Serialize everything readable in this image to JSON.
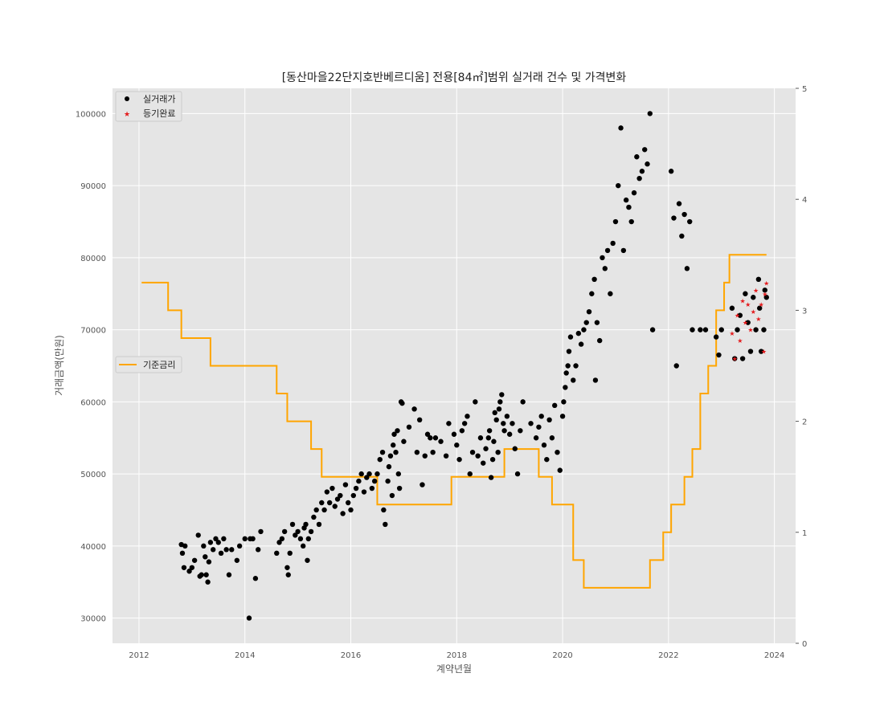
{
  "chart_data": {
    "type": "scatter",
    "title": "[동산마을22단지호반베르디움] 전용[84㎡]범위 실거래 건수 및 가격변화",
    "xlabel": "계약년월",
    "ylabel": "거래금액(만원)",
    "xlim": [
      2011.5,
      2024.4
    ],
    "ylim": [
      26500,
      103500
    ],
    "y2lim": [
      0,
      5
    ],
    "x_ticks": [
      2012,
      2014,
      2016,
      2018,
      2020,
      2022,
      2024
    ],
    "y_ticks": [
      30000,
      40000,
      50000,
      60000,
      70000,
      80000,
      90000,
      100000
    ],
    "y2_ticks": [
      0,
      1,
      2,
      3,
      4,
      5
    ],
    "grid": true,
    "legend_top": {
      "position": "top-left",
      "entries": [
        "실거래가",
        "등기완료"
      ]
    },
    "legend_rate": {
      "position": "center-left",
      "entries": [
        "기준금리"
      ]
    },
    "colors": {
      "trades": "#000000",
      "registered": "#e41a1c",
      "rate": "#ffa500",
      "plot_bg": "#e5e5e5",
      "grid": "#ffffff"
    },
    "series": [
      {
        "name": "실거래가",
        "marker": "dot",
        "points": [
          [
            2012.8,
            40200
          ],
          [
            2012.82,
            39000
          ],
          [
            2012.85,
            37000
          ],
          [
            2012.87,
            40000
          ],
          [
            2012.95,
            36500
          ],
          [
            2013.0,
            37000
          ],
          [
            2013.05,
            38000
          ],
          [
            2013.12,
            41500
          ],
          [
            2013.15,
            35800
          ],
          [
            2013.18,
            36000
          ],
          [
            2013.22,
            40000
          ],
          [
            2013.25,
            38500
          ],
          [
            2013.27,
            36000
          ],
          [
            2013.3,
            35000
          ],
          [
            2013.32,
            37800
          ],
          [
            2013.35,
            40500
          ],
          [
            2013.4,
            39500
          ],
          [
            2013.45,
            41000
          ],
          [
            2013.5,
            40500
          ],
          [
            2013.55,
            39000
          ],
          [
            2013.6,
            41000
          ],
          [
            2013.65,
            39500
          ],
          [
            2013.7,
            36000
          ],
          [
            2013.75,
            39500
          ],
          [
            2013.85,
            38000
          ],
          [
            2013.9,
            40000
          ],
          [
            2014.0,
            41000
          ],
          [
            2014.08,
            30000
          ],
          [
            2014.1,
            41000
          ],
          [
            2014.15,
            41000
          ],
          [
            2014.2,
            35500
          ],
          [
            2014.25,
            39500
          ],
          [
            2014.3,
            42000
          ],
          [
            2014.6,
            39000
          ],
          [
            2014.65,
            40500
          ],
          [
            2014.7,
            41000
          ],
          [
            2014.75,
            42000
          ],
          [
            2014.8,
            37000
          ],
          [
            2014.82,
            36000
          ],
          [
            2014.85,
            39000
          ],
          [
            2014.9,
            43000
          ],
          [
            2014.95,
            41500
          ],
          [
            2015.0,
            42000
          ],
          [
            2015.05,
            41000
          ],
          [
            2015.1,
            40000
          ],
          [
            2015.12,
            42500
          ],
          [
            2015.15,
            43000
          ],
          [
            2015.18,
            38000
          ],
          [
            2015.2,
            41000
          ],
          [
            2015.25,
            42000
          ],
          [
            2015.3,
            44000
          ],
          [
            2015.35,
            45000
          ],
          [
            2015.4,
            43000
          ],
          [
            2015.45,
            46000
          ],
          [
            2015.5,
            45000
          ],
          [
            2015.55,
            47500
          ],
          [
            2015.6,
            46000
          ],
          [
            2015.65,
            48000
          ],
          [
            2015.7,
            45500
          ],
          [
            2015.75,
            46500
          ],
          [
            2015.8,
            47000
          ],
          [
            2015.85,
            44500
          ],
          [
            2015.9,
            48500
          ],
          [
            2015.95,
            46000
          ],
          [
            2016.0,
            45000
          ],
          [
            2016.05,
            47000
          ],
          [
            2016.1,
            48000
          ],
          [
            2016.15,
            49000
          ],
          [
            2016.2,
            50000
          ],
          [
            2016.25,
            47500
          ],
          [
            2016.3,
            49500
          ],
          [
            2016.35,
            50000
          ],
          [
            2016.4,
            48000
          ],
          [
            2016.45,
            49000
          ],
          [
            2016.5,
            50000
          ],
          [
            2016.55,
            52000
          ],
          [
            2016.6,
            53000
          ],
          [
            2016.62,
            45000
          ],
          [
            2016.65,
            43000
          ],
          [
            2016.7,
            49000
          ],
          [
            2016.72,
            51000
          ],
          [
            2016.75,
            52500
          ],
          [
            2016.78,
            47000
          ],
          [
            2016.8,
            54000
          ],
          [
            2016.82,
            55500
          ],
          [
            2016.85,
            53000
          ],
          [
            2016.88,
            56000
          ],
          [
            2016.9,
            50000
          ],
          [
            2016.92,
            48000
          ],
          [
            2016.95,
            60000
          ],
          [
            2016.97,
            59800
          ],
          [
            2017.0,
            54500
          ],
          [
            2017.1,
            56500
          ],
          [
            2017.2,
            59000
          ],
          [
            2017.25,
            53000
          ],
          [
            2017.3,
            57500
          ],
          [
            2017.35,
            48500
          ],
          [
            2017.4,
            52500
          ],
          [
            2017.45,
            55500
          ],
          [
            2017.5,
            55000
          ],
          [
            2017.55,
            53000
          ],
          [
            2017.6,
            55000
          ],
          [
            2017.7,
            54500
          ],
          [
            2017.8,
            52500
          ],
          [
            2017.85,
            57000
          ],
          [
            2017.95,
            55500
          ],
          [
            2018.0,
            54000
          ],
          [
            2018.05,
            52000
          ],
          [
            2018.1,
            56000
          ],
          [
            2018.15,
            57000
          ],
          [
            2018.2,
            58000
          ],
          [
            2018.25,
            50000
          ],
          [
            2018.3,
            53000
          ],
          [
            2018.35,
            60000
          ],
          [
            2018.4,
            52500
          ],
          [
            2018.45,
            55000
          ],
          [
            2018.5,
            51500
          ],
          [
            2018.55,
            53500
          ],
          [
            2018.6,
            55000
          ],
          [
            2018.62,
            56000
          ],
          [
            2018.65,
            49500
          ],
          [
            2018.68,
            52000
          ],
          [
            2018.7,
            54500
          ],
          [
            2018.72,
            58500
          ],
          [
            2018.75,
            57500
          ],
          [
            2018.78,
            53000
          ],
          [
            2018.8,
            59000
          ],
          [
            2018.82,
            60000
          ],
          [
            2018.85,
            61000
          ],
          [
            2018.88,
            57000
          ],
          [
            2018.9,
            56000
          ],
          [
            2018.95,
            58000
          ],
          [
            2019.0,
            55500
          ],
          [
            2019.05,
            57000
          ],
          [
            2019.1,
            53500
          ],
          [
            2019.15,
            50000
          ],
          [
            2019.2,
            56000
          ],
          [
            2019.25,
            60000
          ],
          [
            2019.4,
            57000
          ],
          [
            2019.5,
            55000
          ],
          [
            2019.55,
            56500
          ],
          [
            2019.6,
            58000
          ],
          [
            2019.65,
            54000
          ],
          [
            2019.7,
            52000
          ],
          [
            2019.75,
            57500
          ],
          [
            2019.8,
            55000
          ],
          [
            2019.85,
            59500
          ],
          [
            2019.9,
            53000
          ],
          [
            2019.95,
            50500
          ],
          [
            2020.0,
            58000
          ],
          [
            2020.02,
            60000
          ],
          [
            2020.05,
            62000
          ],
          [
            2020.07,
            64000
          ],
          [
            2020.1,
            65000
          ],
          [
            2020.12,
            67000
          ],
          [
            2020.15,
            69000
          ],
          [
            2020.2,
            63000
          ],
          [
            2020.25,
            65000
          ],
          [
            2020.3,
            69500
          ],
          [
            2020.35,
            68000
          ],
          [
            2020.4,
            70000
          ],
          [
            2020.45,
            71000
          ],
          [
            2020.5,
            72500
          ],
          [
            2020.55,
            75000
          ],
          [
            2020.6,
            77000
          ],
          [
            2020.62,
            63000
          ],
          [
            2020.65,
            71000
          ],
          [
            2020.7,
            68500
          ],
          [
            2020.75,
            80000
          ],
          [
            2020.8,
            78500
          ],
          [
            2020.85,
            81000
          ],
          [
            2020.9,
            75000
          ],
          [
            2020.95,
            82000
          ],
          [
            2021.0,
            85000
          ],
          [
            2021.05,
            90000
          ],
          [
            2021.1,
            98000
          ],
          [
            2021.15,
            81000
          ],
          [
            2021.2,
            88000
          ],
          [
            2021.25,
            87000
          ],
          [
            2021.3,
            85000
          ],
          [
            2021.35,
            89000
          ],
          [
            2021.4,
            94000
          ],
          [
            2021.45,
            91000
          ],
          [
            2021.5,
            92000
          ],
          [
            2021.55,
            95000
          ],
          [
            2021.6,
            93000
          ],
          [
            2021.65,
            100000
          ],
          [
            2021.7,
            70000
          ],
          [
            2022.05,
            92000
          ],
          [
            2022.1,
            85500
          ],
          [
            2022.15,
            65000
          ],
          [
            2022.2,
            87500
          ],
          [
            2022.25,
            83000
          ],
          [
            2022.3,
            86000
          ],
          [
            2022.35,
            78500
          ],
          [
            2022.4,
            85000
          ],
          [
            2022.45,
            70000
          ],
          [
            2022.6,
            70000
          ],
          [
            2022.7,
            70000
          ],
          [
            2022.9,
            69000
          ],
          [
            2022.95,
            66500
          ],
          [
            2023.0,
            70000
          ],
          [
            2023.2,
            73000
          ],
          [
            2023.25,
            66000
          ],
          [
            2023.3,
            70000
          ],
          [
            2023.35,
            72000
          ],
          [
            2023.4,
            66000
          ],
          [
            2023.45,
            75000
          ],
          [
            2023.5,
            71000
          ],
          [
            2023.55,
            67000
          ],
          [
            2023.6,
            74500
          ],
          [
            2023.65,
            70000
          ],
          [
            2023.7,
            77000
          ],
          [
            2023.72,
            73000
          ],
          [
            2023.75,
            67000
          ],
          [
            2023.8,
            70000
          ],
          [
            2023.82,
            75500
          ],
          [
            2023.85,
            74500
          ]
        ]
      },
      {
        "name": "등기완료",
        "marker": "star",
        "points": [
          [
            2023.2,
            69500
          ],
          [
            2023.25,
            66000
          ],
          [
            2023.3,
            72000
          ],
          [
            2023.35,
            68500
          ],
          [
            2023.4,
            74000
          ],
          [
            2023.45,
            71000
          ],
          [
            2023.5,
            73500
          ],
          [
            2023.55,
            70000
          ],
          [
            2023.6,
            72500
          ],
          [
            2023.65,
            75500
          ],
          [
            2023.7,
            71500
          ],
          [
            2023.75,
            73500
          ],
          [
            2023.8,
            67000
          ],
          [
            2023.82,
            75000
          ],
          [
            2023.85,
            76500
          ]
        ]
      },
      {
        "name": "기준금리",
        "type": "step",
        "axis": "right",
        "points": [
          [
            2012.05,
            3.25
          ],
          [
            2012.55,
            3.0
          ],
          [
            2012.8,
            2.75
          ],
          [
            2013.35,
            2.5
          ],
          [
            2014.6,
            2.25
          ],
          [
            2014.8,
            2.0
          ],
          [
            2015.25,
            1.75
          ],
          [
            2015.45,
            1.5
          ],
          [
            2016.5,
            1.25
          ],
          [
            2017.9,
            1.5
          ],
          [
            2018.9,
            1.75
          ],
          [
            2019.55,
            1.5
          ],
          [
            2019.8,
            1.25
          ],
          [
            2020.2,
            0.75
          ],
          [
            2020.4,
            0.5
          ],
          [
            2021.65,
            0.75
          ],
          [
            2021.9,
            1.0
          ],
          [
            2022.05,
            1.25
          ],
          [
            2022.3,
            1.5
          ],
          [
            2022.45,
            1.75
          ],
          [
            2022.6,
            2.25
          ],
          [
            2022.75,
            2.5
          ],
          [
            2022.9,
            3.0
          ],
          [
            2023.05,
            3.25
          ],
          [
            2023.15,
            3.5
          ],
          [
            2023.85,
            3.5
          ]
        ]
      }
    ]
  }
}
